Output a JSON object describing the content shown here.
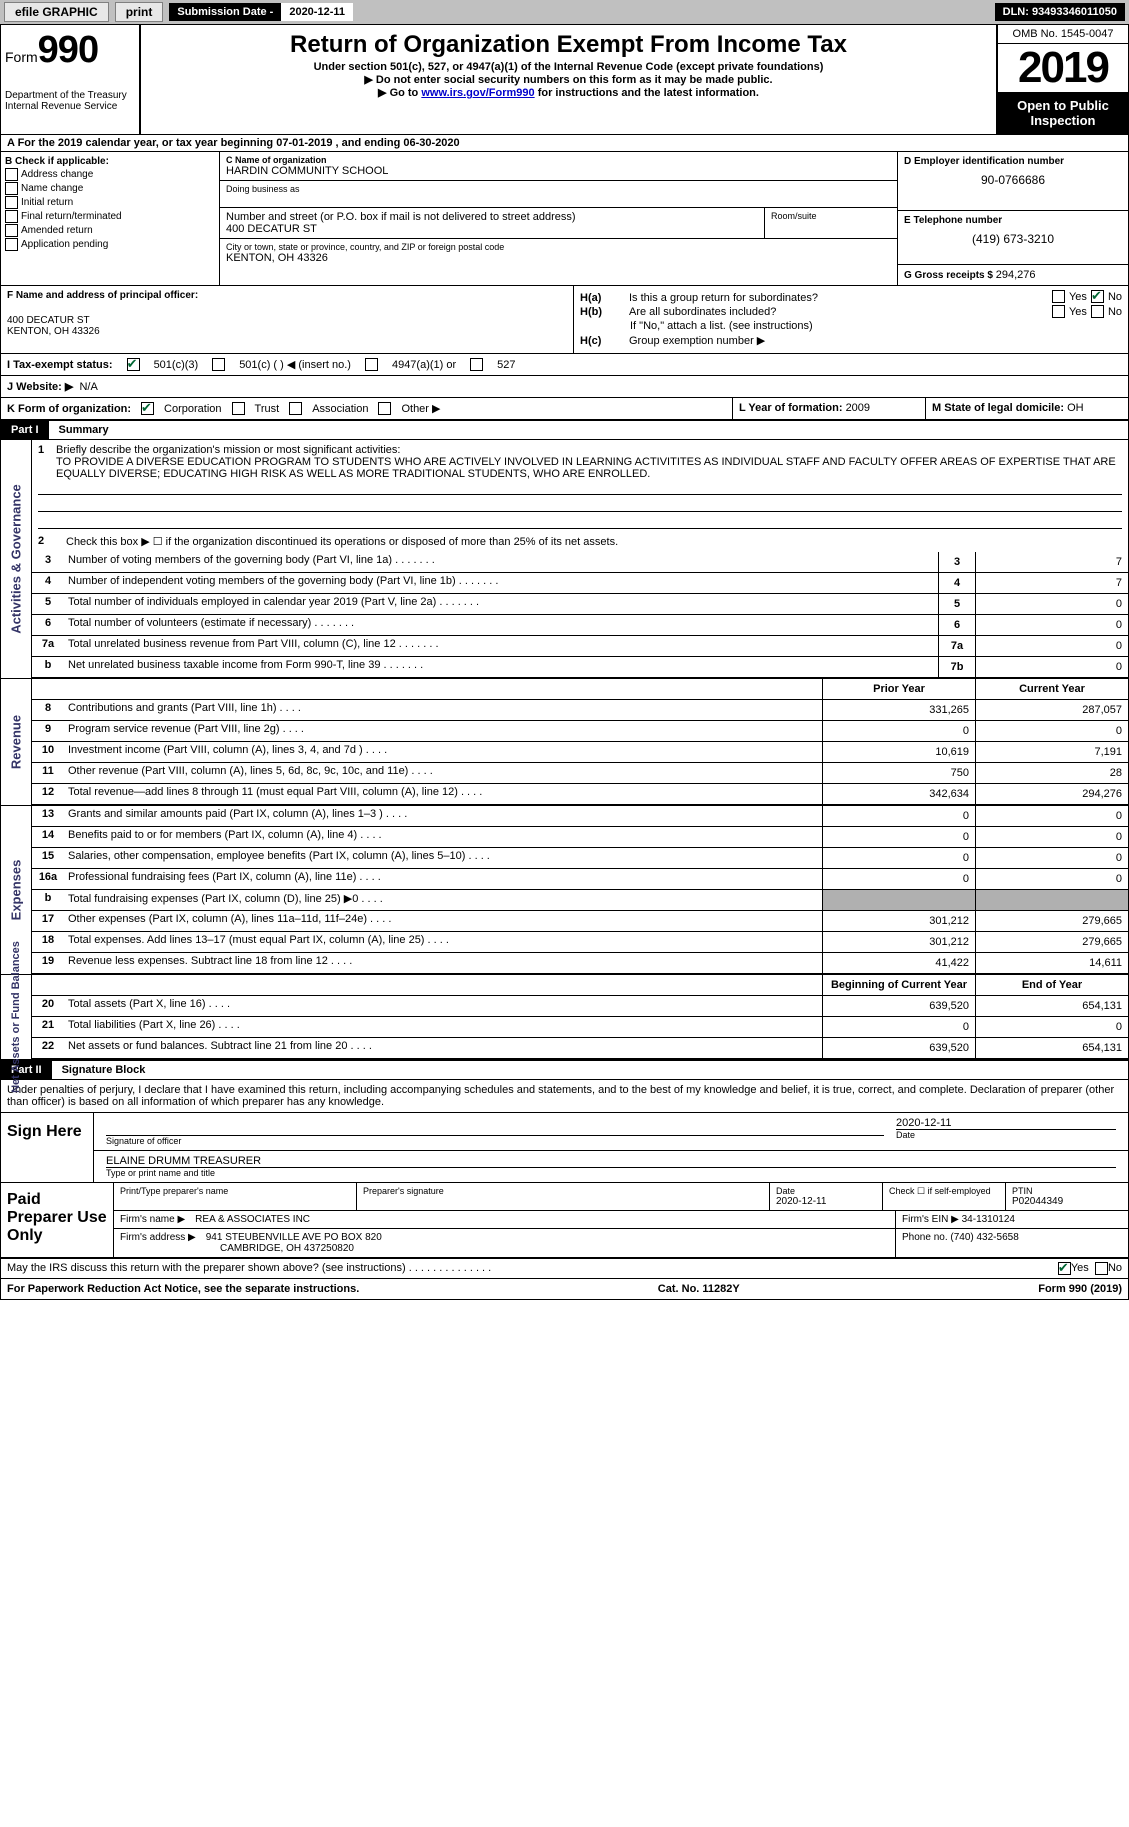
{
  "colors": {
    "topbar_bg": "#c0c0c0",
    "black": "#000000",
    "white": "#ffffff",
    "link": "#0000cc",
    "check_green": "#006633",
    "shaded": "#b0b0b0",
    "side_label": "#333366"
  },
  "topbar": {
    "efile": "efile GRAPHIC",
    "print": "print",
    "sub_label": "Submission Date - ",
    "sub_date": "2020-12-11",
    "dln": "DLN: 93493346011050"
  },
  "header": {
    "form_prefix": "Form",
    "form_number": "990",
    "dept": "Department of the Treasury\nInternal Revenue Service",
    "title": "Return of Organization Exempt From Income Tax",
    "sub1": "Under section 501(c), 527, or 4947(a)(1) of the Internal Revenue Code (except private foundations)",
    "sub2": "▶ Do not enter social security numbers on this form as it may be made public.",
    "sub3_prefix": "▶ Go to ",
    "sub3_link": "www.irs.gov/Form990",
    "sub3_suffix": " for instructions and the latest information.",
    "omb": "OMB No. 1545-0047",
    "year": "2019",
    "otp": "Open to Public Inspection"
  },
  "period": {
    "prefix": "A For the 2019 calendar year, or tax year beginning ",
    "begin": "07-01-2019",
    "mid": " , and ending ",
    "end": "06-30-2020"
  },
  "boxB": {
    "label": "B Check if applicable:",
    "items": [
      "Address change",
      "Name change",
      "Initial return",
      "Final return/terminated",
      "Amended return",
      "Application pending"
    ]
  },
  "boxC": {
    "name_label": "C Name of organization",
    "name": "HARDIN COMMUNITY SCHOOL",
    "dba_label": "Doing business as",
    "dba": "",
    "addr_label": "Number and street (or P.O. box if mail is not delivered to street address)",
    "room_label": "Room/suite",
    "addr": "400 DECATUR ST",
    "city_label": "City or town, state or province, country, and ZIP or foreign postal code",
    "city": "KENTON, OH  43326"
  },
  "boxD": {
    "label": "D Employer identification number",
    "val": "90-0766686"
  },
  "boxE": {
    "label": "E Telephone number",
    "val": "(419) 673-3210"
  },
  "boxG": {
    "label": "G Gross receipts $ ",
    "val": "294,276"
  },
  "boxF": {
    "label": "F Name and address of principal officer:",
    "name": "",
    "addr1": "400 DECATUR ST",
    "addr2": "KENTON, OH  43326"
  },
  "boxH": {
    "a_label": "H(a)  Is this a group return for subordinates?",
    "a_yes": "Yes",
    "a_no": "No",
    "b_label": "H(b)  Are all subordinates included?",
    "b_yes": "Yes",
    "b_no": "No",
    "b_note": "If \"No,\" attach a list. (see instructions)",
    "c_label": "H(c)  Group exemption number ▶"
  },
  "boxI": {
    "label": "I   Tax-exempt status:",
    "opt1": "501(c)(3)",
    "opt2": "501(c) (  ) ◀ (insert no.)",
    "opt3": "4947(a)(1) or",
    "opt4": "527"
  },
  "boxJ": {
    "label": "J   Website: ▶",
    "val": "N/A"
  },
  "boxK": {
    "label": "K Form of organization:",
    "opts": [
      "Corporation",
      "Trust",
      "Association",
      "Other ▶"
    ]
  },
  "boxL": {
    "label": "L Year of formation: ",
    "val": "2009"
  },
  "boxM": {
    "label": "M State of legal domicile: ",
    "val": "OH"
  },
  "part1": {
    "tag": "Part I",
    "title": "Summary",
    "line1_label": "Briefly describe the organization's mission or most significant activities:",
    "line1_text": "TO PROVIDE A DIVERSE EDUCATION PROGRAM TO STUDENTS WHO ARE ACTIVELY INVOLVED IN LEARNING ACTIVITITES AS INDIVIDUAL STAFF AND FACULTY OFFER AREAS OF EXPERTISE THAT ARE EQUALLY DIVERSE; EDUCATING HIGH RISK AS WELL AS MORE TRADITIONAL STUDENTS, WHO ARE ENROLLED.",
    "line2": "Check this box ▶ ☐  if the organization discontinued its operations or disposed of more than 25% of its net assets."
  },
  "side_tabs": {
    "ag": "Activities & Governance",
    "rev": "Revenue",
    "exp": "Expenses",
    "nafb": "Net Assets or Fund Balances"
  },
  "governance_rows": [
    {
      "n": "3",
      "desc": "Number of voting members of the governing body (Part VI, line 1a)",
      "ln": "3",
      "val": "7"
    },
    {
      "n": "4",
      "desc": "Number of independent voting members of the governing body (Part VI, line 1b)",
      "ln": "4",
      "val": "7"
    },
    {
      "n": "5",
      "desc": "Total number of individuals employed in calendar year 2019 (Part V, line 2a)",
      "ln": "5",
      "val": "0"
    },
    {
      "n": "6",
      "desc": "Total number of volunteers (estimate if necessary)",
      "ln": "6",
      "val": "0"
    },
    {
      "n": "7a",
      "desc": "Total unrelated business revenue from Part VIII, column (C), line 12",
      "ln": "7a",
      "val": "0"
    },
    {
      "n": "b",
      "desc": "Net unrelated business taxable income from Form 990-T, line 39",
      "ln": "7b",
      "val": "0"
    }
  ],
  "col_headers": {
    "prior": "Prior Year",
    "current": "Current Year"
  },
  "revenue_rows": [
    {
      "n": "8",
      "desc": "Contributions and grants (Part VIII, line 1h)",
      "prior": "331,265",
      "cur": "287,057"
    },
    {
      "n": "9",
      "desc": "Program service revenue (Part VIII, line 2g)",
      "prior": "0",
      "cur": "0"
    },
    {
      "n": "10",
      "desc": "Investment income (Part VIII, column (A), lines 3, 4, and 7d )",
      "prior": "10,619",
      "cur": "7,191"
    },
    {
      "n": "11",
      "desc": "Other revenue (Part VIII, column (A), lines 5, 6d, 8c, 9c, 10c, and 11e)",
      "prior": "750",
      "cur": "28"
    },
    {
      "n": "12",
      "desc": "Total revenue—add lines 8 through 11 (must equal Part VIII, column (A), line 12)",
      "prior": "342,634",
      "cur": "294,276"
    }
  ],
  "expense_rows": [
    {
      "n": "13",
      "desc": "Grants and similar amounts paid (Part IX, column (A), lines 1–3 )",
      "prior": "0",
      "cur": "0"
    },
    {
      "n": "14",
      "desc": "Benefits paid to or for members (Part IX, column (A), line 4)",
      "prior": "0",
      "cur": "0"
    },
    {
      "n": "15",
      "desc": "Salaries, other compensation, employee benefits (Part IX, column (A), lines 5–10)",
      "prior": "0",
      "cur": "0"
    },
    {
      "n": "16a",
      "desc": "Professional fundraising fees (Part IX, column (A), line 11e)",
      "prior": "0",
      "cur": "0"
    },
    {
      "n": "b",
      "desc": "Total fundraising expenses (Part IX, column (D), line 25) ▶0",
      "prior": "",
      "cur": "",
      "shaded": true
    },
    {
      "n": "17",
      "desc": "Other expenses (Part IX, column (A), lines 11a–11d, 11f–24e)",
      "prior": "301,212",
      "cur": "279,665"
    },
    {
      "n": "18",
      "desc": "Total expenses. Add lines 13–17 (must equal Part IX, column (A), line 25)",
      "prior": "301,212",
      "cur": "279,665"
    },
    {
      "n": "19",
      "desc": "Revenue less expenses. Subtract line 18 from line 12",
      "prior": "41,422",
      "cur": "14,611"
    }
  ],
  "net_headers": {
    "begin": "Beginning of Current Year",
    "end": "End of Year"
  },
  "net_rows": [
    {
      "n": "20",
      "desc": "Total assets (Part X, line 16)",
      "prior": "639,520",
      "cur": "654,131"
    },
    {
      "n": "21",
      "desc": "Total liabilities (Part X, line 26)",
      "prior": "0",
      "cur": "0"
    },
    {
      "n": "22",
      "desc": "Net assets or fund balances. Subtract line 21 from line 20",
      "prior": "639,520",
      "cur": "654,131"
    }
  ],
  "part2": {
    "tag": "Part II",
    "title": "Signature Block",
    "decl": "Under penalties of perjury, I declare that I have examined this return, including accompanying schedules and statements, and to the best of my knowledge and belief, it is true, correct, and complete. Declaration of preparer (other than officer) is based on all information of which preparer has any knowledge."
  },
  "sign": {
    "left": "Sign Here",
    "sig_label": "Signature of officer",
    "date_label": "Date",
    "date": "2020-12-11",
    "name": "ELAINE DRUMM TREASURER",
    "name_label": "Type or print name and title"
  },
  "paid": {
    "left": "Paid Preparer Use Only",
    "name_label": "Print/Type preparer's name",
    "sig_label": "Preparer's signature",
    "date_label": "Date",
    "date": "2020-12-11",
    "check_label": "Check ☐ if self-employed",
    "ptin_label": "PTIN",
    "ptin": "P02044349",
    "firm_name_label": "Firm's name      ▶",
    "firm_name": "REA & ASSOCIATES INC",
    "firm_ein_label": "Firm's EIN ▶",
    "firm_ein": "34-1310124",
    "firm_addr_label": "Firm's address ▶",
    "firm_addr1": "941 STEUBENVILLE AVE PO BOX 820",
    "firm_addr2": "CAMBRIDGE, OH  437250820",
    "phone_label": "Phone no. ",
    "phone": "(740) 432-5658"
  },
  "discuss": {
    "q": "May the IRS discuss this return with the preparer shown above? (see instructions)",
    "yes": "Yes",
    "no": "No"
  },
  "footer": {
    "left": "For Paperwork Reduction Act Notice, see the separate instructions.",
    "mid": "Cat. No. 11282Y",
    "right_prefix": "Form ",
    "right_form": "990",
    "right_suffix": " (2019)"
  }
}
